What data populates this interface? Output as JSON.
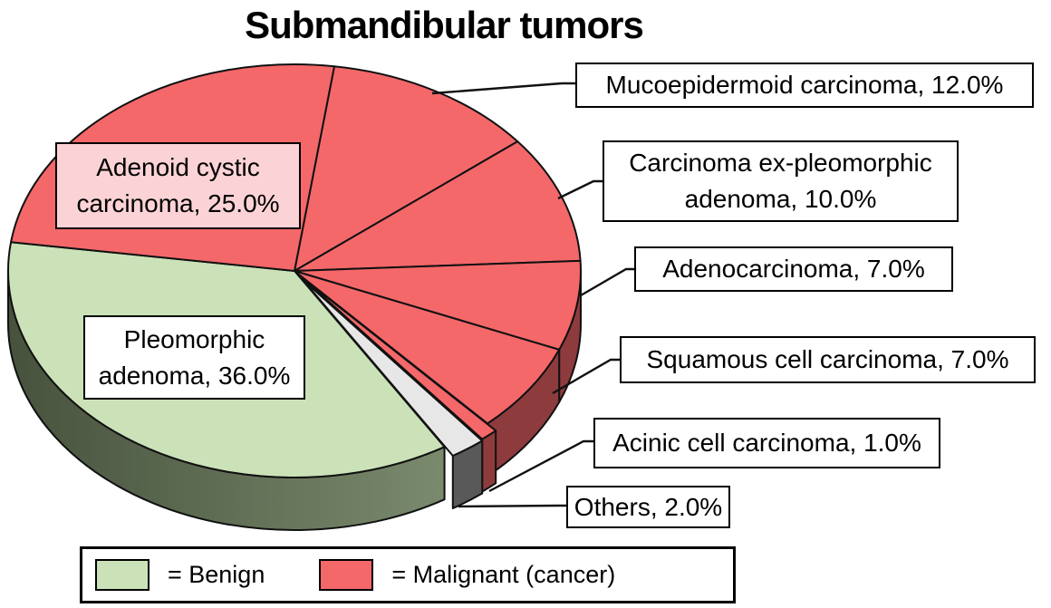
{
  "title": "Submandibular tumors",
  "chart_data": {
    "type": "pie",
    "style": "3d-exploded-pie",
    "title": "Submandibular tumors",
    "rotation_deg": 8,
    "units": "%",
    "slices": [
      {
        "name": "Mucoepidermoid carcinoma",
        "value": 12.0,
        "group": "malignant",
        "color": "#F4686A",
        "side_color": "#8E3B3E",
        "explode": 0
      },
      {
        "name": "Carcinoma ex-pleomorphic adenoma",
        "value": 10.0,
        "group": "malignant",
        "color": "#F4686A",
        "side_color": "#8E3B3E",
        "explode": 0
      },
      {
        "name": "Adenocarcinoma",
        "value": 7.0,
        "group": "malignant",
        "color": "#F4686A",
        "side_color": "#8E3B3E",
        "explode": 0
      },
      {
        "name": "Squamous cell carcinoma",
        "value": 7.0,
        "group": "malignant",
        "color": "#F4686A",
        "side_color": "#8E3B3E",
        "explode": 0
      },
      {
        "name": "Acinic cell carcinoma",
        "value": 1.0,
        "group": "malignant",
        "color": "#F4686A",
        "side_color": "#8E3B3E",
        "explode": 14
      },
      {
        "name": "Others",
        "value": 2.0,
        "group": "other",
        "color": "#E8E7E7",
        "side_color": "#595959",
        "explode": 16
      },
      {
        "name": "Pleomorphic adenoma",
        "value": 36.0,
        "group": "benign",
        "color": "#CBE2B8",
        "side_color_gradient": [
          "#47523D",
          "#7A8A6D"
        ]
      },
      {
        "name": "Adenoid cystic carcinoma",
        "value": 25.0,
        "group": "malignant",
        "color": "#F4686A",
        "side_color": "#8E3B3E",
        "explode": 0
      }
    ],
    "legend_position": "bottom"
  },
  "callouts": {
    "mucoepidermoid": {
      "label": "Mucoepidermoid carcinoma, 12.0%"
    },
    "carcinoma_ex": {
      "line1": "Carcinoma ex-pleomorphic",
      "line2": "adenoma, 10.0%"
    },
    "adenocarcinoma": {
      "label": "Adenocarcinoma, 7.0%"
    },
    "squamous": {
      "label": "Squamous cell carcinoma, 7.0%"
    },
    "acinic": {
      "label": "Acinic cell carcinoma, 1.0%"
    },
    "others": {
      "label": "Others, 2.0%"
    }
  },
  "pie_labels": {
    "adenoid_cystic": {
      "line1": "Adenoid cystic",
      "line2": "carcinoma, 25.0%",
      "bg": "#FBD3D6"
    },
    "pleomorphic": {
      "line1": "Pleomorphic",
      "line2": "adenoma, 36.0%",
      "bg": "#FFFFFF"
    }
  },
  "legend": {
    "benign_label": "= Benign",
    "benign_color": "#CBE2B8",
    "malignant_label": "= Malignant (cancer)",
    "malignant_color": "#F4686A"
  }
}
